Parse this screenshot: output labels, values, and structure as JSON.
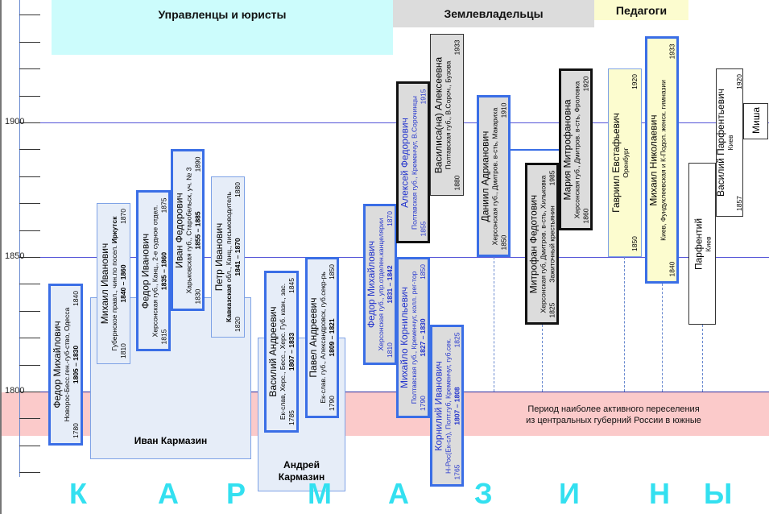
{
  "headers": {
    "managers": "Управленцы и юристы",
    "landowners": "Землевладельцы",
    "teachers": "Педагоги"
  },
  "colors": {
    "managers_bg": "#ccfcfc",
    "landowners_bg": "#dcdcdc",
    "teachers_bg": "#fcfccf",
    "band": "#fbcaca",
    "accent": "#3a6ee6",
    "letters": "#33e0f0"
  },
  "axis": {
    "labels": [
      "1900",
      "1850",
      "1800"
    ]
  },
  "band_text": [
    "Период наиболее активного переселения",
    "из центральных губерний России в южные"
  ],
  "groups": [
    "Иван Кармазин",
    "Андрей Кармазин"
  ],
  "people": [
    {
      "name": "Федор Михайлович",
      "detail": "Новорос-Бесс.ген.-губ-ство, Одесса",
      "start": "1780",
      "range": "1805 – 1830",
      "end": "1840"
    },
    {
      "name": "Михаил Иванович",
      "detail": "Губернское правл., чин.по посел. ",
      "detail_bold": "Иркутск",
      "start": "1810",
      "range": "1840 – 1860",
      "end": "1870"
    },
    {
      "name": "Федор Иванович",
      "detail": "Херсонская губ., Канц., 2-е судное отдел.",
      "start": "1815",
      "range": "1835 – 1860",
      "end": "1875"
    },
    {
      "name": "Иван Федорович",
      "detail": "Харьковская губ., Старобельск, уч. № 3",
      "start": "1830",
      "range": "1855 – 1885",
      "end": "1890"
    },
    {
      "name": "Петр Иванович",
      "detail_bold": "Кавказская",
      "detail_post": " обл., Канц., письмоводитель",
      "start": "1820",
      "range": "1841 – 1870",
      "end": "1880"
    },
    {
      "name": "Василий Андреевич",
      "detail": "Ек-слав, Херс., Бесс., Херс. Губ. казн., зас.",
      "start": "1785",
      "range": "1807 – 1833",
      "end": "1845"
    },
    {
      "name": "Павел Андреевич",
      "detail": "Ек-слав. губ., Александровск, губ.секр-рь",
      "start": "1790",
      "range": "1809 – 1821",
      "end": "1850"
    },
    {
      "name": "Федор Михайлович",
      "detail": "Херсонская губ., упр.отделен.канцелярии",
      "start": "1810",
      "range": "1831 – 1842",
      "end": "1870"
    },
    {
      "name": "Михайло Корнильевич",
      "detail": "Полтавская губ., Кременчуг, колл. рег-тор",
      "start": "1790",
      "range": "1827 – 1830",
      "end": "1850"
    },
    {
      "name": "Корнилий Иванович",
      "detail": "Н-Рос(Ек-сл), Полт.губ, Кременчуг, губ.сек.",
      "start": "1765",
      "range": "1807 – 1808",
      "end": "1825"
    },
    {
      "name": "Алексей Федорович",
      "detail": "Полтавская губ., Кременчуг, В.Сорочинцы",
      "start": "1855",
      "end": "1915"
    },
    {
      "name": "Василиса(на) Алексеевна",
      "detail": "Полтавская губ., В.Сороч., Бузова",
      "start": "1880",
      "end": "1933"
    },
    {
      "name": "Даниил Адрианович",
      "detail": "Херсонская губ., Дмитров. в-сть, Макариха",
      "start": "1850",
      "end": "1910"
    },
    {
      "name": "Митрофан Федотович",
      "detail": "Херсонская губ, Дмитров. в-сть, Хильковка",
      "start": "1825",
      "range": "Зажиточный крестьянин",
      "end": "1985"
    },
    {
      "name": "Мария Митрофановна",
      "detail": "Херсонская губ., Дмитров. в-сть, Фроловка",
      "start": "1860",
      "end": "1920"
    },
    {
      "name": "Гавриил Евстафьевич",
      "detail": "Оренбург",
      "start": "1850",
      "end": "1920"
    },
    {
      "name": "Михаил Николаевич",
      "detail": "Киев, Фундуклеевская и К-Подол. женск. гимназии",
      "start": "1840",
      "end": "1933"
    },
    {
      "name": "Парфентий",
      "detail": "Киев"
    },
    {
      "name": "Василий Парфентьевич",
      "detail": "Киев",
      "start": "1857",
      "end": "1920"
    },
    {
      "name": "Миша"
    }
  ],
  "surname_letters": [
    "К",
    "А",
    "Р",
    "М",
    "А",
    "З",
    "И",
    "Н",
    "Ы"
  ]
}
